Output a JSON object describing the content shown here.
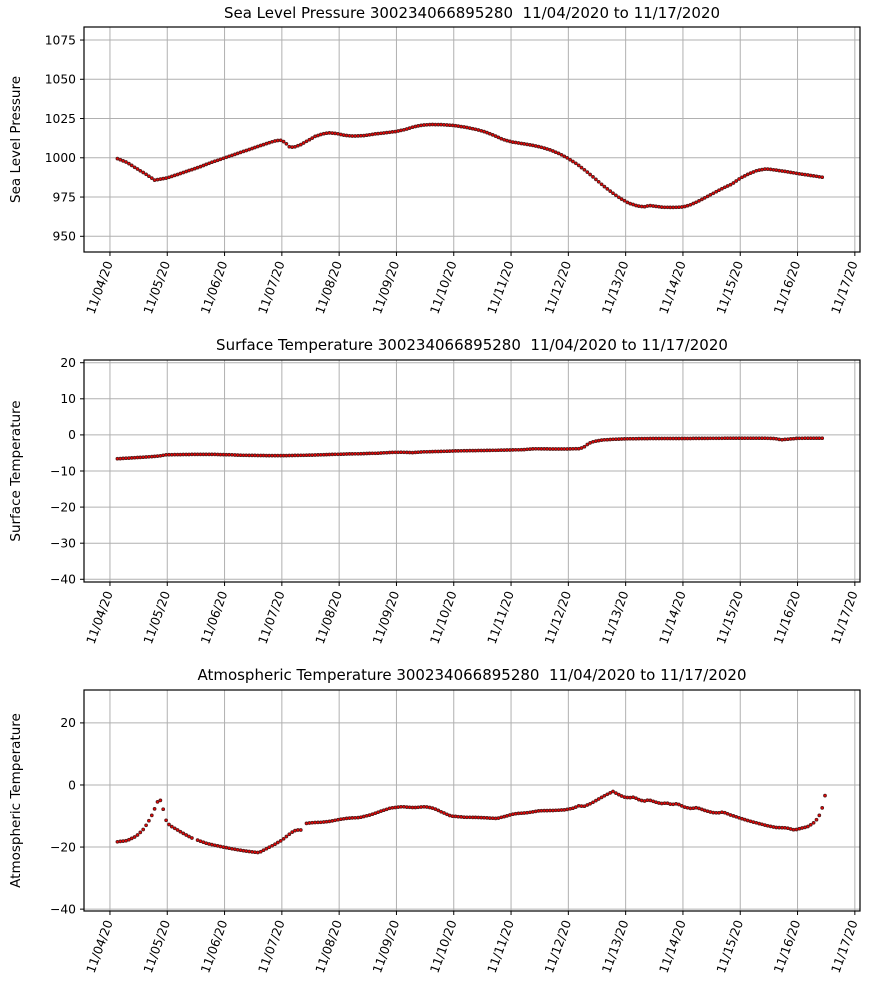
{
  "figure": {
    "background": "#ffffff",
    "grid_color": "#b0b0b0",
    "spine_color": "#000000",
    "text_color": "#000000",
    "marker": {
      "fill": "#ff0000",
      "edge": "#5a1a1a"
    }
  },
  "chart_data": [
    {
      "type": "scatter",
      "title": "Sea Level Pressure 300234066895280  11/04/2020 to 11/17/2020",
      "ylabel": "Sea Level Pressure",
      "grid": true,
      "legend": null,
      "x_axis": {
        "tick_labels": [
          "11/04/20",
          "11/05/20",
          "11/06/20",
          "11/07/20",
          "11/08/20",
          "11/09/20",
          "11/10/20",
          "11/11/20",
          "11/12/20",
          "11/13/20",
          "11/14/20",
          "11/15/20",
          "11/16/20",
          "11/17/20"
        ],
        "tick_days": [
          0,
          1,
          2,
          3,
          4,
          5,
          6,
          7,
          8,
          9,
          10,
          11,
          12,
          13
        ],
        "xlim_days": [
          -0.453,
          13.09
        ],
        "label_rotation_deg": 70
      },
      "y_axis": {
        "tick_values": [
          950,
          975,
          1000,
          1025,
          1050,
          1075
        ],
        "tick_labels": [
          "950",
          "975",
          "1000",
          "1025",
          "1050",
          "1075"
        ],
        "ylim": [
          940.0,
          1083.3
        ]
      },
      "sample_interval_days": 0.05,
      "gaps_days": [],
      "series": {
        "name": "sea_level_pressure",
        "keypoints": [
          [
            0.13,
            999.5
          ],
          [
            0.3,
            997
          ],
          [
            0.45,
            993.5
          ],
          [
            0.6,
            990.2
          ],
          [
            0.7,
            987.8
          ],
          [
            0.78,
            985.8
          ],
          [
            0.88,
            986.4
          ],
          [
            1.0,
            987.2
          ],
          [
            1.15,
            989
          ],
          [
            1.35,
            991.5
          ],
          [
            1.55,
            994
          ],
          [
            1.75,
            996.8
          ],
          [
            1.95,
            999.3
          ],
          [
            2.15,
            1001.8
          ],
          [
            2.35,
            1004.3
          ],
          [
            2.55,
            1006.8
          ],
          [
            2.75,
            1009.3
          ],
          [
            2.9,
            1010.9
          ],
          [
            3.0,
            1011.2
          ],
          [
            3.08,
            1008.9
          ],
          [
            3.14,
            1006.7
          ],
          [
            3.22,
            1006.9
          ],
          [
            3.32,
            1008.2
          ],
          [
            3.45,
            1010.9
          ],
          [
            3.58,
            1013.6
          ],
          [
            3.72,
            1015.3
          ],
          [
            3.82,
            1015.9
          ],
          [
            3.95,
            1015.5
          ],
          [
            4.1,
            1014.3
          ],
          [
            4.25,
            1013.8
          ],
          [
            4.45,
            1014.2
          ],
          [
            4.65,
            1015.3
          ],
          [
            4.85,
            1016.1
          ],
          [
            5.0,
            1016.8
          ],
          [
            5.15,
            1018
          ],
          [
            5.3,
            1019.7
          ],
          [
            5.45,
            1020.8
          ],
          [
            5.6,
            1021.2
          ],
          [
            5.8,
            1021.1
          ],
          [
            6.0,
            1020.6
          ],
          [
            6.2,
            1019.5
          ],
          [
            6.4,
            1018
          ],
          [
            6.55,
            1016.5
          ],
          [
            6.7,
            1014.3
          ],
          [
            6.85,
            1011.8
          ],
          [
            7.0,
            1010.2
          ],
          [
            7.2,
            1009
          ],
          [
            7.4,
            1007.8
          ],
          [
            7.55,
            1006.5
          ],
          [
            7.7,
            1004.8
          ],
          [
            7.85,
            1002.5
          ],
          [
            8.0,
            999.5
          ],
          [
            8.15,
            996
          ],
          [
            8.3,
            991.8
          ],
          [
            8.45,
            987.2
          ],
          [
            8.6,
            982.5
          ],
          [
            8.75,
            978.2
          ],
          [
            8.9,
            974.3
          ],
          [
            9.05,
            971.2
          ],
          [
            9.2,
            969.4
          ],
          [
            9.32,
            968.8
          ],
          [
            9.42,
            969.6
          ],
          [
            9.52,
            969.1
          ],
          [
            9.65,
            968.5
          ],
          [
            9.85,
            968.4
          ],
          [
            10.0,
            968.7
          ],
          [
            10.12,
            969.9
          ],
          [
            10.25,
            972
          ],
          [
            10.4,
            974.8
          ],
          [
            10.55,
            977.8
          ],
          [
            10.7,
            980.7
          ],
          [
            10.85,
            983.2
          ],
          [
            11.0,
            987
          ],
          [
            11.15,
            989.8
          ],
          [
            11.3,
            992
          ],
          [
            11.45,
            992.9
          ],
          [
            11.6,
            992.3
          ],
          [
            11.8,
            991.2
          ],
          [
            12.0,
            990
          ],
          [
            12.2,
            988.9
          ],
          [
            12.35,
            988.1
          ],
          [
            12.47,
            987.4
          ]
        ]
      }
    },
    {
      "type": "scatter",
      "title": "Surface Temperature 300234066895280  11/04/2020 to 11/17/2020",
      "ylabel": "Surface Temperature",
      "grid": true,
      "legend": null,
      "x_axis": {
        "tick_labels": [
          "11/04/20",
          "11/05/20",
          "11/06/20",
          "11/07/20",
          "11/08/20",
          "11/09/20",
          "11/10/20",
          "11/11/20",
          "11/12/20",
          "11/13/20",
          "11/14/20",
          "11/15/20",
          "11/16/20",
          "11/17/20"
        ],
        "tick_days": [
          0,
          1,
          2,
          3,
          4,
          5,
          6,
          7,
          8,
          9,
          10,
          11,
          12,
          13
        ],
        "xlim_days": [
          -0.453,
          13.09
        ],
        "label_rotation_deg": 70
      },
      "y_axis": {
        "tick_values": [
          -40,
          -30,
          -20,
          -10,
          0,
          10,
          20
        ],
        "tick_labels": [
          "−40",
          "−30",
          "−20",
          "−10",
          "0",
          "10",
          "20"
        ],
        "ylim": [
          -40.75,
          20.75
        ]
      },
      "sample_interval_days": 0.05,
      "gaps_days": [],
      "series": {
        "name": "surface_temperature",
        "keypoints": [
          [
            0.13,
            -6.6
          ],
          [
            0.35,
            -6.4
          ],
          [
            0.55,
            -6.2
          ],
          [
            0.75,
            -6.0
          ],
          [
            0.88,
            -5.8
          ],
          [
            0.98,
            -5.5
          ],
          [
            1.2,
            -5.45
          ],
          [
            1.5,
            -5.4
          ],
          [
            1.8,
            -5.4
          ],
          [
            2.1,
            -5.5
          ],
          [
            2.3,
            -5.65
          ],
          [
            2.6,
            -5.7
          ],
          [
            2.9,
            -5.75
          ],
          [
            3.2,
            -5.7
          ],
          [
            3.5,
            -5.6
          ],
          [
            3.8,
            -5.45
          ],
          [
            4.1,
            -5.3
          ],
          [
            4.4,
            -5.2
          ],
          [
            4.7,
            -5.05
          ],
          [
            4.9,
            -4.85
          ],
          [
            5.1,
            -4.8
          ],
          [
            5.3,
            -4.9
          ],
          [
            5.45,
            -4.7
          ],
          [
            5.7,
            -4.6
          ],
          [
            6.0,
            -4.45
          ],
          [
            6.3,
            -4.35
          ],
          [
            6.6,
            -4.3
          ],
          [
            6.9,
            -4.2
          ],
          [
            7.2,
            -4.1
          ],
          [
            7.4,
            -3.85
          ],
          [
            7.7,
            -3.9
          ],
          [
            8.0,
            -3.9
          ],
          [
            8.2,
            -3.8
          ],
          [
            8.27,
            -3.4
          ],
          [
            8.35,
            -2.4
          ],
          [
            8.45,
            -1.8
          ],
          [
            8.6,
            -1.4
          ],
          [
            8.8,
            -1.2
          ],
          [
            9.1,
            -1.05
          ],
          [
            9.5,
            -1.0
          ],
          [
            10.0,
            -1.0
          ],
          [
            10.5,
            -0.95
          ],
          [
            11.0,
            -0.9
          ],
          [
            11.4,
            -0.9
          ],
          [
            11.6,
            -1.0
          ],
          [
            11.72,
            -1.35
          ],
          [
            11.85,
            -1.15
          ],
          [
            12.0,
            -0.95
          ],
          [
            12.2,
            -0.9
          ],
          [
            12.47,
            -0.9
          ]
        ]
      }
    },
    {
      "type": "scatter",
      "title": "Atmospheric Temperature 300234066895280  11/04/2020 to 11/17/2020",
      "ylabel": "Atmospheric Temperature",
      "grid": true,
      "legend": null,
      "x_axis": {
        "tick_labels": [
          "11/04/20",
          "11/05/20",
          "11/06/20",
          "11/07/20",
          "11/08/20",
          "11/09/20",
          "11/10/20",
          "11/11/20",
          "11/12/20",
          "11/13/20",
          "11/14/20",
          "11/15/20",
          "11/16/20",
          "11/17/20"
        ],
        "tick_days": [
          0,
          1,
          2,
          3,
          4,
          5,
          6,
          7,
          8,
          9,
          10,
          11,
          12,
          13
        ],
        "xlim_days": [
          -0.453,
          13.09
        ],
        "label_rotation_deg": 70
      },
      "y_axis": {
        "tick_values": [
          -40,
          -20,
          0,
          20
        ],
        "tick_labels": [
          "−40",
          "−20",
          "0",
          "20"
        ],
        "ylim": [
          -40.6,
          30.6
        ]
      },
      "sample_interval_days": 0.05,
      "gaps_days": [
        [
          1.44,
          1.52
        ],
        [
          3.33,
          3.38
        ]
      ],
      "series": {
        "name": "atmospheric_temperature",
        "keypoints": [
          [
            0.13,
            -18.3
          ],
          [
            0.3,
            -17.9
          ],
          [
            0.45,
            -16.6
          ],
          [
            0.57,
            -14.6
          ],
          [
            0.66,
            -12.2
          ],
          [
            0.73,
            -9.8
          ],
          [
            0.79,
            -7.3
          ],
          [
            0.84,
            -5.0
          ],
          [
            0.87,
            -4.5
          ],
          [
            0.91,
            -6.4
          ],
          [
            0.95,
            -9.2
          ],
          [
            0.99,
            -12.1
          ],
          [
            1.06,
            -13.2
          ],
          [
            1.16,
            -14.3
          ],
          [
            1.3,
            -15.8
          ],
          [
            1.42,
            -17.0
          ],
          [
            1.55,
            -17.9
          ],
          [
            1.7,
            -18.9
          ],
          [
            1.95,
            -19.9
          ],
          [
            2.2,
            -20.8
          ],
          [
            2.45,
            -21.5
          ],
          [
            2.6,
            -21.8
          ],
          [
            2.7,
            -20.8
          ],
          [
            2.85,
            -19.4
          ],
          [
            3.0,
            -17.8
          ],
          [
            3.12,
            -16.0
          ],
          [
            3.2,
            -14.9
          ],
          [
            3.27,
            -14.4
          ],
          [
            3.32,
            -14.9
          ],
          [
            3.38,
            -12.5
          ],
          [
            3.55,
            -12.1
          ],
          [
            3.7,
            -12.0
          ],
          [
            3.85,
            -11.7
          ],
          [
            4.0,
            -11.1
          ],
          [
            4.15,
            -10.7
          ],
          [
            4.35,
            -10.5
          ],
          [
            4.55,
            -9.6
          ],
          [
            4.75,
            -8.3
          ],
          [
            4.9,
            -7.4
          ],
          [
            5.1,
            -7.0
          ],
          [
            5.3,
            -7.3
          ],
          [
            5.5,
            -7.0
          ],
          [
            5.65,
            -7.5
          ],
          [
            5.8,
            -8.8
          ],
          [
            5.95,
            -10.0
          ],
          [
            6.2,
            -10.4
          ],
          [
            6.5,
            -10.5
          ],
          [
            6.75,
            -10.8
          ],
          [
            6.92,
            -10.0
          ],
          [
            7.05,
            -9.3
          ],
          [
            7.3,
            -8.9
          ],
          [
            7.5,
            -8.3
          ],
          [
            7.75,
            -8.2
          ],
          [
            7.95,
            -8.0
          ],
          [
            8.1,
            -7.4
          ],
          [
            8.18,
            -6.7
          ],
          [
            8.27,
            -6.9
          ],
          [
            8.4,
            -5.9
          ],
          [
            8.55,
            -4.3
          ],
          [
            8.7,
            -2.8
          ],
          [
            8.78,
            -2.1
          ],
          [
            8.87,
            -3.0
          ],
          [
            8.97,
            -3.9
          ],
          [
            9.07,
            -4.1
          ],
          [
            9.14,
            -3.9
          ],
          [
            9.24,
            -4.8
          ],
          [
            9.32,
            -5.2
          ],
          [
            9.4,
            -4.8
          ],
          [
            9.52,
            -5.5
          ],
          [
            9.62,
            -6.0
          ],
          [
            9.72,
            -5.8
          ],
          [
            9.8,
            -6.3
          ],
          [
            9.9,
            -6.0
          ],
          [
            10.02,
            -7.1
          ],
          [
            10.14,
            -7.6
          ],
          [
            10.24,
            -7.3
          ],
          [
            10.38,
            -8.2
          ],
          [
            10.52,
            -8.9
          ],
          [
            10.62,
            -9.0
          ],
          [
            10.7,
            -8.7
          ],
          [
            10.82,
            -9.6
          ],
          [
            10.97,
            -10.5
          ],
          [
            11.12,
            -11.4
          ],
          [
            11.3,
            -12.3
          ],
          [
            11.47,
            -13.1
          ],
          [
            11.62,
            -13.7
          ],
          [
            11.8,
            -13.8
          ],
          [
            11.95,
            -14.5
          ],
          [
            12.07,
            -13.9
          ],
          [
            12.17,
            -13.5
          ],
          [
            12.27,
            -12.4
          ],
          [
            12.34,
            -11.0
          ],
          [
            12.4,
            -9.2
          ],
          [
            12.44,
            -6.8
          ],
          [
            12.47,
            -4.2
          ],
          [
            12.5,
            -1.9
          ]
        ]
      }
    }
  ]
}
